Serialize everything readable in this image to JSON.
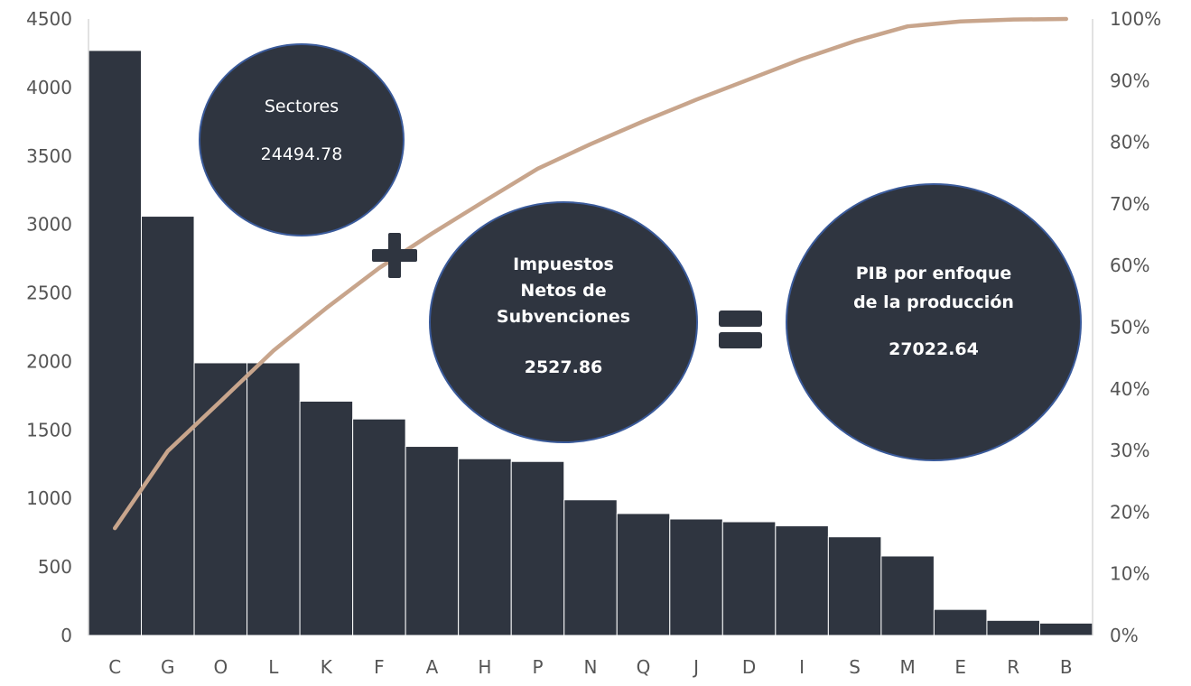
{
  "colors": {
    "bar": "#2f3540",
    "bar_border": "#ffffff",
    "line": "#c8a58c",
    "bubble": "#2f3540",
    "bubble_border": "#3a5a9a",
    "operator": "#2f3540",
    "axis_text": "#555555",
    "axis_line": "#d9d9d9"
  },
  "chart_data": {
    "type": "bar",
    "categories": [
      "C",
      "G",
      "O",
      "L",
      "K",
      "F",
      "A",
      "H",
      "P",
      "N",
      "Q",
      "J",
      "D",
      "I",
      "S",
      "M",
      "E",
      "R",
      "B"
    ],
    "values": [
      4270,
      3060,
      1990,
      1990,
      1710,
      1580,
      1380,
      1290,
      1270,
      990,
      890,
      850,
      830,
      800,
      720,
      580,
      190,
      110,
      90
    ],
    "ylim": [
      0,
      4500
    ],
    "yticks": [
      "0",
      "500",
      "1000",
      "1500",
      "2000",
      "2500",
      "3000",
      "3500",
      "4000",
      "4500"
    ],
    "y2lim": [
      0,
      100
    ],
    "y2ticks": [
      "0%",
      "10%",
      "20%",
      "30%",
      "40%",
      "50%",
      "60%",
      "70%",
      "80%",
      "90%",
      "100%"
    ],
    "cumulative_percent": [
      17.4,
      29.9,
      38.0,
      46.2,
      53.1,
      59.6,
      65.2,
      70.5,
      75.7,
      79.7,
      83.4,
      86.9,
      90.2,
      93.5,
      96.4,
      98.8,
      99.6,
      99.9,
      100.0
    ],
    "grid": false,
    "annotations": {
      "sectors": {
        "label": "Sectores",
        "value": "24494.78"
      },
      "taxes": {
        "label_lines": [
          "Impuestos",
          "Netos de",
          "Subvenciones"
        ],
        "value": "2527.86"
      },
      "gdp": {
        "label_lines": [
          "PIB por enfoque",
          "de la producción"
        ],
        "value": "27022.64"
      },
      "plus_icon": "plus-icon",
      "equals_icon": "equals-icon"
    }
  }
}
